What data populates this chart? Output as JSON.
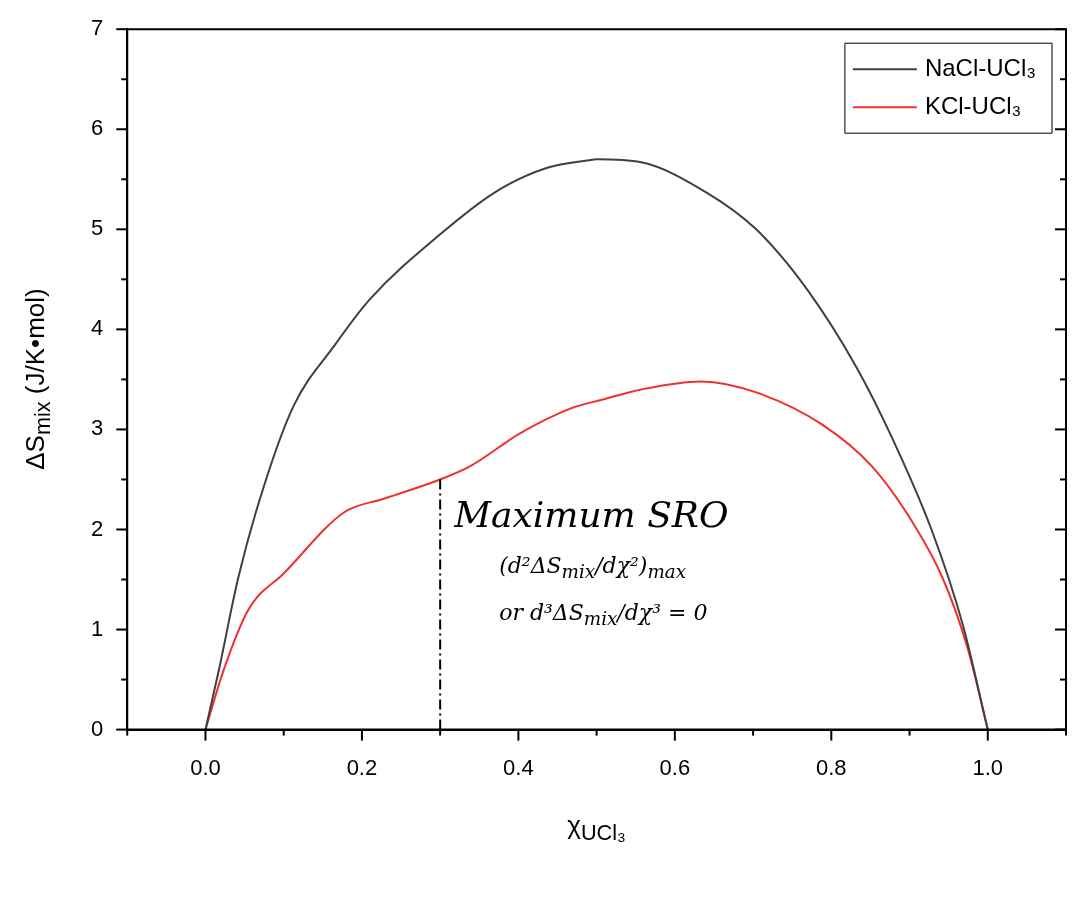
{
  "chart_data": {
    "type": "line",
    "xlabel": "χ$_{UCl₃}$",
    "ylabel": "ΔS$_{mix}$ (J/K•mol)",
    "xlim": [
      -0.1,
      1.1
    ],
    "ylim": [
      0,
      7
    ],
    "xticks": [
      {
        "value": -0.1,
        "label": null
      },
      {
        "value": 0,
        "label": "0.0"
      },
      {
        "value": 0.1,
        "label": null
      },
      {
        "value": 0.2,
        "label": "0.2"
      },
      {
        "value": 0.3,
        "label": null
      },
      {
        "value": 0.4,
        "label": "0.4"
      },
      {
        "value": 0.5,
        "label": null
      },
      {
        "value": 0.6,
        "label": "0.6"
      },
      {
        "value": 0.7,
        "label": null
      },
      {
        "value": 0.8,
        "label": "0.8"
      },
      {
        "value": 0.9,
        "label": null
      },
      {
        "value": 1.0,
        "label": "1.0"
      },
      {
        "value": 1.1,
        "label": null
      }
    ],
    "yticks": [
      0,
      {
        "value": 0.5,
        "label": null
      },
      1,
      {
        "value": 1.5,
        "label": null
      },
      2,
      {
        "value": 2.5,
        "label": null
      },
      3,
      {
        "value": 3.5,
        "label": null
      },
      4,
      {
        "value": 4.5,
        "label": null
      },
      5,
      {
        "value": 5.5,
        "label": null
      },
      6,
      {
        "value": 6.5,
        "label": null
      },
      7
    ],
    "grid": false,
    "legend": "top right",
    "marker": "none",
    "line_style": "solid",
    "series": [
      {
        "name": "NaCl-UCl₃",
        "color": "#404040",
        "x": [
          0,
          0.017,
          0.042,
          0.075,
          0.113,
          0.165,
          0.21,
          0.3,
          0.37,
          0.435,
          0.49,
          0.5,
          0.557,
          0.64,
          0.704,
          0.769,
          0.833,
          0.878,
          0.929,
          0.968,
          1.0
        ],
        "values": [
          0,
          0.59,
          1.52,
          2.44,
          3.24,
          3.84,
          4.3,
          4.95,
          5.37,
          5.61,
          5.69,
          5.7,
          5.67,
          5.37,
          5.0,
          4.4,
          3.61,
          2.91,
          1.98,
          1.05,
          0
        ]
      },
      {
        "name": "KCl-UCl₃",
        "color": "#f03030",
        "x": [
          0,
          0.023,
          0.055,
          0.1,
          0.177,
          0.229,
          0.3,
          0.338,
          0.402,
          0.467,
          0.508,
          0.557,
          0.634,
          0.704,
          0.788,
          0.852,
          0.904,
          0.942,
          0.974,
          1.0
        ],
        "values": [
          0,
          0.59,
          1.2,
          1.56,
          2.17,
          2.31,
          2.5,
          2.63,
          2.96,
          3.21,
          3.3,
          3.4,
          3.48,
          3.37,
          3.05,
          2.63,
          2.07,
          1.52,
          0.82,
          0
        ]
      }
    ],
    "ref_lines": [
      {
        "axis": "x",
        "value": 0.3,
        "line_style": "dashdot",
        "color": "#000000"
      }
    ],
    "annotations": [
      "Maximum SRO",
      "(d²ΔS$_{mix}$/dχ²)$_{max}$",
      "or d³ΔS$_{mix}$/dχ³ = 0"
    ]
  }
}
